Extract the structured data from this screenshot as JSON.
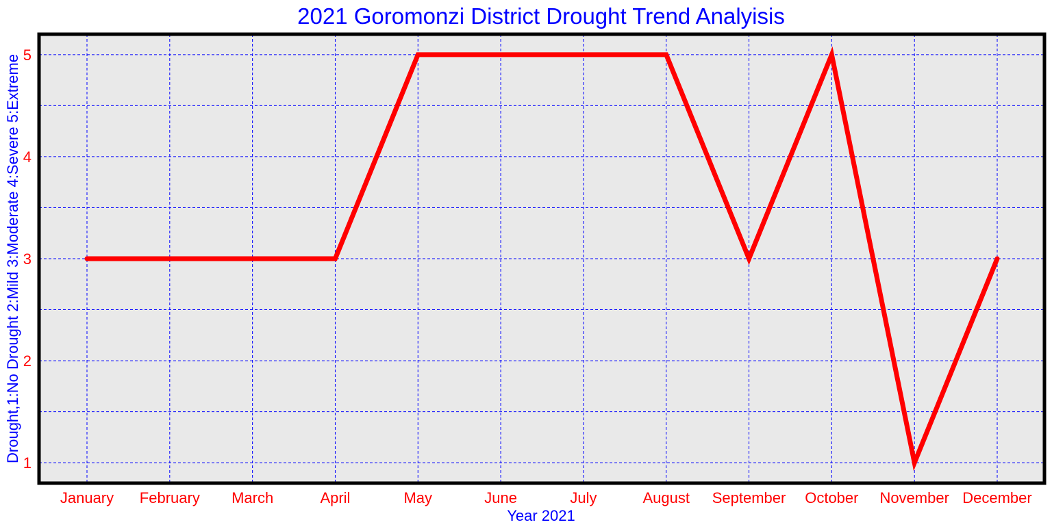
{
  "chart_data": {
    "type": "line",
    "title": "2021 Goromonzi District Drought Trend Analyisis",
    "xlabel": "Year 2021",
    "ylabel": "Drought,1:No Drought 2:Mild 3:Moderate 4:Severe 5:Extreme",
    "categories": [
      "January",
      "February",
      "March",
      "April",
      "May",
      "June",
      "July",
      "August",
      "September",
      "October",
      "November",
      "December"
    ],
    "series": [
      {
        "values": [
          3,
          3,
          3,
          3,
          5,
          5,
          5,
          5,
          3,
          5,
          1,
          3
        ]
      }
    ],
    "yticks": [
      "1",
      "2",
      "3",
      "4",
      "5"
    ],
    "ylim": [
      0.8,
      5.2
    ],
    "grid": true,
    "colors": {
      "line": "#ff0000",
      "grid": "#0000ff",
      "plot_bg": "#e9e9e9",
      "frame": "#000000",
      "title": "#0000ff",
      "tick_labels": "#ff0000"
    }
  }
}
